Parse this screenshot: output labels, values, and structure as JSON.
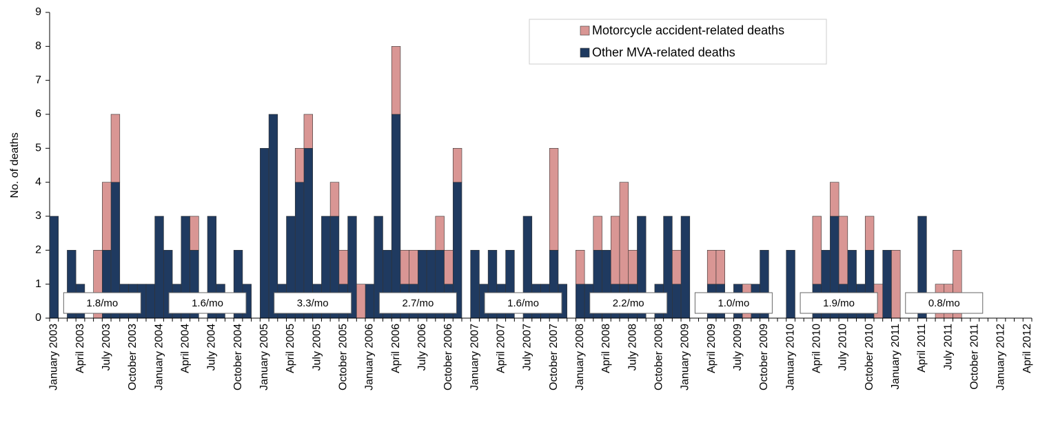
{
  "chart_data": {
    "type": "stacked_bar",
    "y_label": "No. of deaths",
    "categories": [
      "January 2003",
      null,
      null,
      "April 2003",
      null,
      null,
      "July 2003",
      null,
      null,
      "October 2003",
      null,
      null,
      "January 2004",
      null,
      null,
      "April 2004",
      null,
      null,
      "July 2004",
      null,
      null,
      "October 2004",
      null,
      null,
      "January 2005",
      null,
      null,
      "April 2005",
      null,
      null,
      "July 2005",
      null,
      null,
      "October 2005",
      null,
      null,
      "January 2006",
      null,
      null,
      "April 2006",
      null,
      null,
      "July 2006",
      null,
      null,
      "October 2006",
      null,
      null,
      "January 2007",
      null,
      null,
      "April 2007",
      null,
      null,
      "July 2007",
      null,
      null,
      "October 2007",
      null,
      null,
      "January 2008",
      null,
      null,
      "April 2008",
      null,
      null,
      "July 2008",
      null,
      null,
      "October 2008",
      null,
      null,
      "January 2009",
      null,
      null,
      "April 2009",
      null,
      null,
      "July 2009",
      null,
      null,
      "October 2009",
      null,
      null,
      "January 2010",
      null,
      null,
      "April 2010",
      null,
      null,
      "July 2010",
      null,
      null,
      "October 2010",
      null,
      null,
      "January 2011",
      null,
      null,
      "April 2011",
      null,
      null,
      "July 2011",
      null,
      null,
      "October 2011",
      null,
      null,
      "January 2012",
      null,
      null,
      "April 2012"
    ],
    "series": [
      {
        "name": "Other MVA-related deaths",
        "color": "#1f3a60",
        "values": [
          3,
          0,
          2,
          1,
          0,
          0,
          2,
          4,
          1,
          1,
          1,
          1,
          3,
          2,
          1,
          3,
          2,
          0,
          3,
          1,
          0,
          2,
          1,
          0,
          5,
          6,
          1,
          3,
          4,
          5,
          1,
          3,
          3,
          1,
          3,
          0,
          1,
          3,
          2,
          6,
          1,
          1,
          2,
          2,
          2,
          1,
          4,
          0,
          2,
          1,
          2,
          1,
          2,
          0,
          3,
          1,
          1,
          2,
          1,
          0,
          1,
          1,
          2,
          2,
          1,
          1,
          1,
          3,
          0,
          1,
          3,
          1,
          3,
          0,
          0,
          1,
          1,
          0,
          1,
          0,
          1,
          2,
          0,
          0,
          2,
          0,
          0,
          1,
          2,
          3,
          1,
          2,
          1,
          2,
          0,
          2,
          0,
          0,
          0,
          3,
          0,
          0,
          0,
          0,
          0,
          0,
          0,
          0,
          0,
          0,
          0,
          0
        ]
      },
      {
        "name": "Motorcycle accident-related deaths",
        "color": "#d99694",
        "values": [
          0,
          0,
          0,
          0,
          0,
          2,
          2,
          2,
          0,
          0,
          0,
          0,
          0,
          0,
          0,
          0,
          1,
          0,
          0,
          0,
          0,
          0,
          0,
          0,
          0,
          0,
          0,
          0,
          1,
          1,
          0,
          0,
          1,
          1,
          0,
          1,
          0,
          0,
          0,
          2,
          1,
          1,
          0,
          0,
          1,
          1,
          1,
          0,
          0,
          0,
          0,
          0,
          0,
          0,
          0,
          0,
          0,
          3,
          0,
          0,
          1,
          0,
          1,
          0,
          2,
          3,
          1,
          0,
          0,
          0,
          0,
          1,
          0,
          0,
          0,
          1,
          1,
          0,
          0,
          1,
          0,
          0,
          0,
          0,
          0,
          0,
          0,
          2,
          0,
          1,
          2,
          0,
          0,
          1,
          1,
          0,
          2,
          0,
          0,
          0,
          0,
          1,
          1,
          2,
          0,
          0,
          0,
          0,
          0,
          0,
          0,
          0
        ]
      }
    ],
    "annotations": [
      "1.8/mo",
      "1.6/mo",
      "3.3/mo",
      "2.7/mo",
      "1.6/mo",
      "2.2/mo",
      "1.0/mo",
      "1.9/mo",
      "0.8/mo"
    ],
    "ylim": [
      0,
      9
    ],
    "yticks": [
      0,
      1,
      2,
      3,
      4,
      5,
      6,
      7,
      8,
      9
    ],
    "grid": false
  }
}
